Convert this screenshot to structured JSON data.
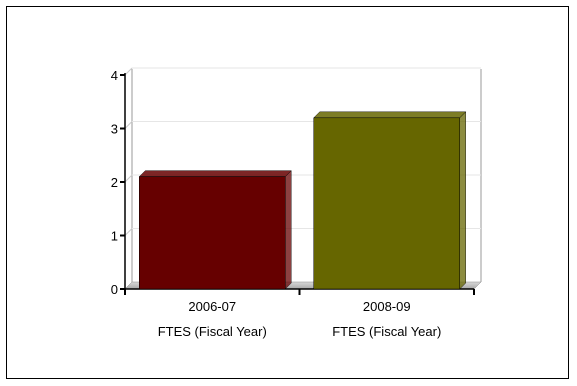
{
  "chart_data": {
    "type": "bar",
    "categories": [
      "2006-07",
      "2008-09"
    ],
    "category_sublabels": [
      "FTES (Fiscal Year)",
      "FTES (Fiscal Year)"
    ],
    "values": [
      2.1,
      3.2
    ],
    "colors": [
      "#660000",
      "#666600"
    ],
    "ylim": [
      0,
      4
    ],
    "yticks": [
      "0",
      "1",
      "2",
      "3",
      "4"
    ],
    "grid": true,
    "legend": "none",
    "title": "",
    "xlabel": "",
    "ylabel": ""
  }
}
